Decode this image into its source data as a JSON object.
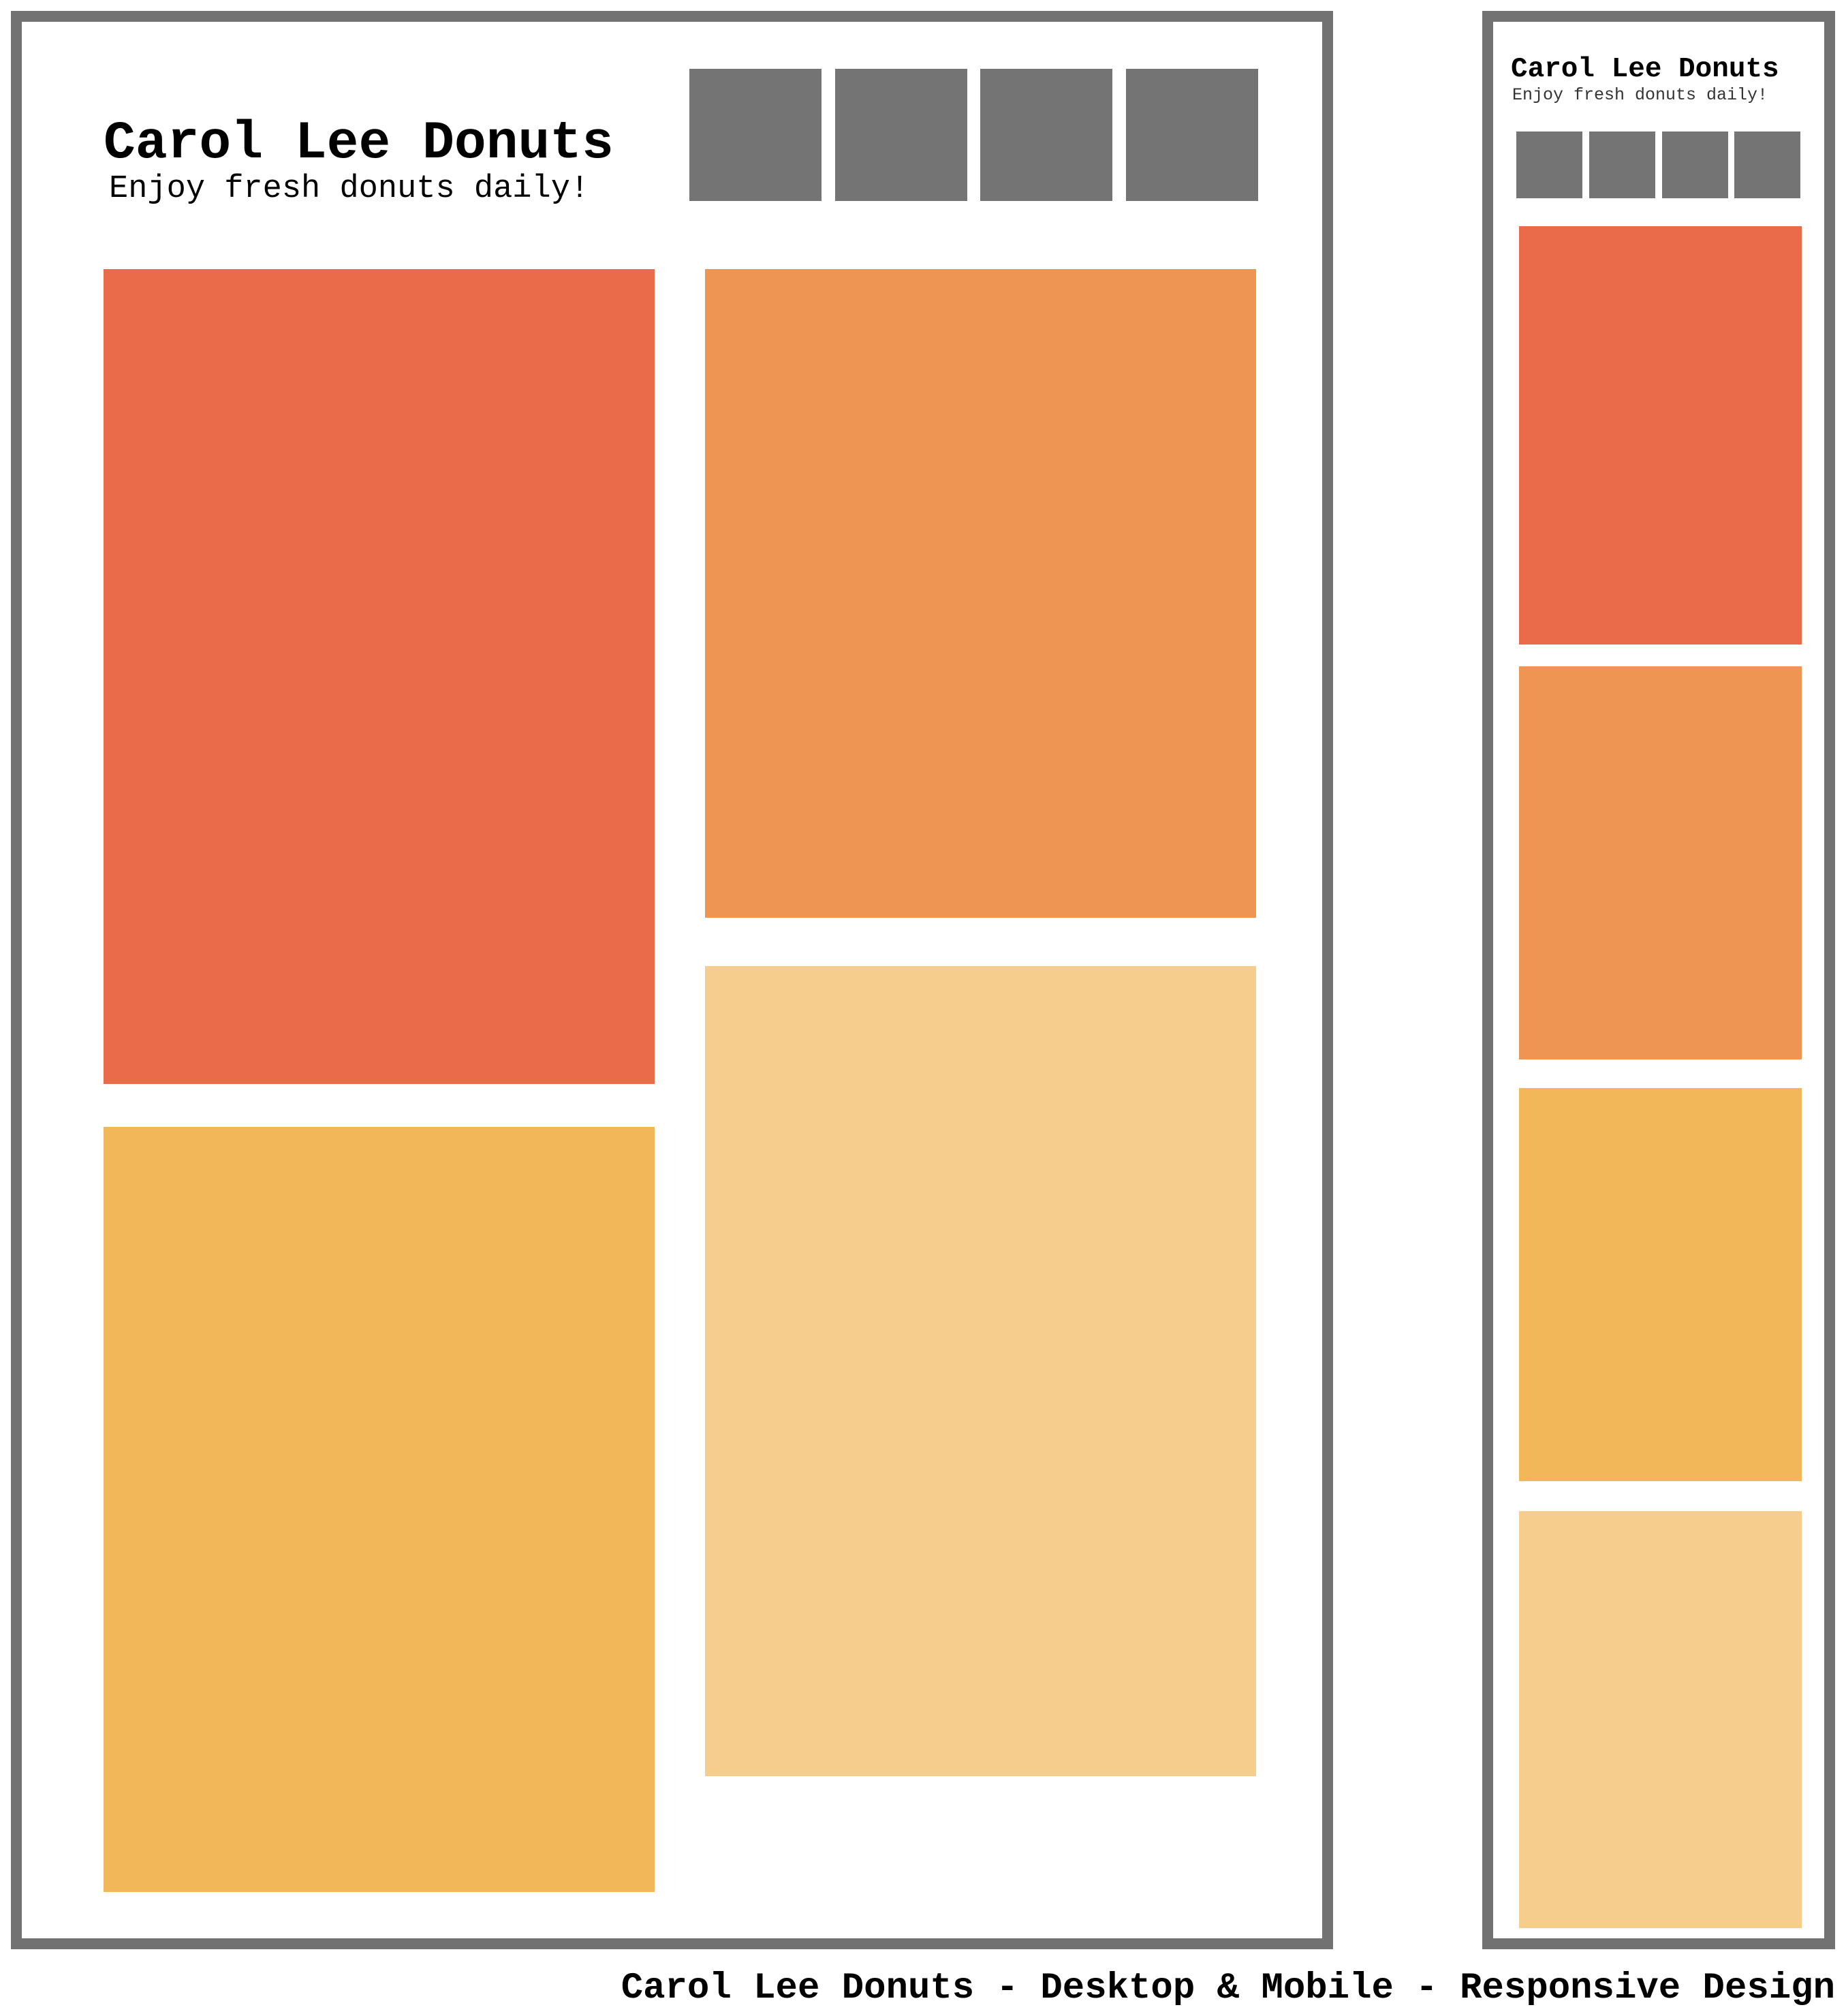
{
  "desktop": {
    "title": "Carol Lee Donuts",
    "tagline": "Enjoy fresh donuts daily!",
    "nav_items": [
      "",
      "",
      "",
      ""
    ],
    "tiles": [
      {
        "color": "#E96B4A"
      },
      {
        "color": "#EF9553"
      },
      {
        "color": "#F2B759"
      },
      {
        "color": "#F7CD8E"
      }
    ]
  },
  "mobile": {
    "title": "Carol Lee Donuts",
    "tagline": "Enjoy fresh donuts daily!",
    "nav_items": [
      "",
      "",
      "",
      ""
    ],
    "tiles": [
      {
        "color": "#E96B4A"
      },
      {
        "color": "#EF9553"
      },
      {
        "color": "#F2B759"
      },
      {
        "color": "#F7CD8E"
      }
    ]
  },
  "caption": "Carol Lee Donuts - Desktop & Mobile - Responsive Design",
  "colors": {
    "frame": "#727272",
    "nav": "#747474",
    "background": "#FFFFFF"
  }
}
